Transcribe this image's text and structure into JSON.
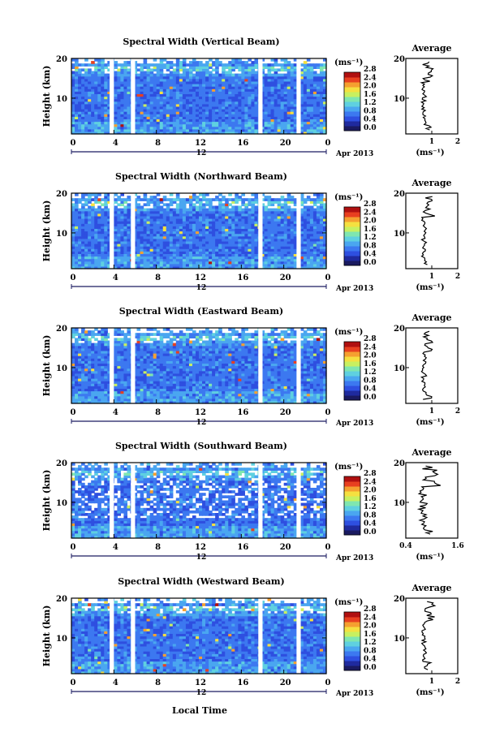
{
  "chart_data": [
    {
      "type": "heatmap",
      "title": "Spectral Width (Vertical Beam)",
      "ylabel": "Height (km)",
      "x_ticks": [
        "0",
        "4",
        "8",
        "12",
        "16",
        "20",
        "0"
      ],
      "y_ticks": [
        "10",
        "20"
      ],
      "date_label": "12",
      "date_suffix": "Apr 2013",
      "xlim": [
        0,
        24
      ],
      "ylim": [
        1,
        20
      ],
      "gaps": [
        [
          3.6,
          4.0
        ],
        [
          5.6,
          6.0
        ],
        [
          17.6,
          18.0
        ],
        [
          21.2,
          21.6
        ]
      ],
      "colorbar": {
        "unit": "(ms⁻¹)",
        "ticks": [
          "0.0",
          "0.4",
          "0.8",
          "1.2",
          "1.6",
          "2.0",
          "2.4",
          "2.8"
        ]
      },
      "average": {
        "title": "Average",
        "xlabel": "(ms⁻¹)",
        "xticks": [
          "1",
          "2"
        ],
        "xlim": [
          0,
          2
        ],
        "yticks": [
          "10",
          "20"
        ]
      }
    },
    {
      "type": "heatmap",
      "title": "Spectral Width (Northward Beam)",
      "ylabel": "Height (km)",
      "x_ticks": [
        "0",
        "4",
        "8",
        "12",
        "16",
        "20",
        "0"
      ],
      "y_ticks": [
        "10",
        "20"
      ],
      "date_label": "12",
      "date_suffix": "Apr 2013",
      "xlim": [
        0,
        24
      ],
      "ylim": [
        1,
        20
      ],
      "gaps": [
        [
          3.6,
          4.0
        ],
        [
          5.6,
          6.0
        ],
        [
          17.6,
          18.0
        ],
        [
          21.2,
          21.6
        ]
      ],
      "colorbar": {
        "unit": "(ms⁻¹)",
        "ticks": [
          "0.0",
          "0.4",
          "0.8",
          "1.2",
          "1.6",
          "2.0",
          "2.4",
          "2.8"
        ]
      },
      "average": {
        "title": "Average",
        "xlabel": "(ms⁻¹)",
        "xticks": [
          "1",
          "2"
        ],
        "xlim": [
          0,
          2
        ],
        "yticks": [
          "10",
          "20"
        ]
      }
    },
    {
      "type": "heatmap",
      "title": "Spectral Width (Eastward Beam)",
      "ylabel": "Height (km)",
      "x_ticks": [
        "0",
        "4",
        "8",
        "12",
        "16",
        "20",
        "0"
      ],
      "y_ticks": [
        "10",
        "20"
      ],
      "date_label": "12",
      "date_suffix": "Apr 2013",
      "xlim": [
        0,
        24
      ],
      "ylim": [
        1,
        20
      ],
      "gaps": [
        [
          3.6,
          4.0
        ],
        [
          5.6,
          6.0
        ],
        [
          17.6,
          18.0
        ],
        [
          21.2,
          21.6
        ]
      ],
      "colorbar": {
        "unit": "(ms⁻¹)",
        "ticks": [
          "0.0",
          "0.4",
          "0.8",
          "1.2",
          "1.6",
          "2.0",
          "2.4",
          "2.8"
        ]
      },
      "average": {
        "title": "Average",
        "xlabel": "(ms⁻¹)",
        "xticks": [
          "1",
          "2"
        ],
        "xlim": [
          0,
          2
        ],
        "yticks": [
          "10",
          "20"
        ]
      }
    },
    {
      "type": "heatmap",
      "title": "Spectral Width (Southward Beam)",
      "ylabel": "Height (km)",
      "x_ticks": [
        "0",
        "4",
        "8",
        "12",
        "16",
        "20",
        "0"
      ],
      "y_ticks": [
        "10",
        "20"
      ],
      "date_label": "12",
      "date_suffix": "Apr 2013",
      "xlim": [
        0,
        24
      ],
      "ylim": [
        1,
        20
      ],
      "gaps": [
        [
          3.6,
          4.0
        ],
        [
          5.6,
          6.0
        ],
        [
          17.6,
          18.0
        ],
        [
          21.2,
          21.6
        ]
      ],
      "colorbar": {
        "unit": "(ms⁻¹)",
        "ticks": [
          "0.0",
          "0.4",
          "0.8",
          "1.2",
          "1.6",
          "2.0",
          "2.4",
          "2.8"
        ]
      },
      "average": {
        "title": "Average",
        "xlabel": "(ms⁻¹)",
        "xticks": [
          "0.4",
          "1.6"
        ],
        "xlim": [
          0.4,
          1.6
        ],
        "yticks": [
          "10",
          "20"
        ]
      }
    },
    {
      "type": "heatmap",
      "title": "Spectral Width (Westward Beam)",
      "ylabel": "Height (km)",
      "x_ticks": [
        "0",
        "4",
        "8",
        "12",
        "16",
        "20",
        "0"
      ],
      "y_ticks": [
        "10",
        "20"
      ],
      "date_label": "12",
      "date_suffix": "Apr 2013",
      "xlim": [
        0,
        24
      ],
      "ylim": [
        1,
        20
      ],
      "gaps": [
        [
          3.6,
          4.0
        ],
        [
          5.6,
          6.0
        ],
        [
          17.6,
          18.0
        ],
        [
          21.2,
          21.6
        ]
      ],
      "colorbar": {
        "unit": "(ms⁻¹)",
        "ticks": [
          "0.0",
          "0.4",
          "0.8",
          "1.2",
          "1.6",
          "2.0",
          "2.4",
          "2.8"
        ]
      },
      "average": {
        "title": "Average",
        "xlabel": "(ms⁻¹)",
        "xticks": [
          "1",
          "2"
        ],
        "xlim": [
          0,
          2
        ],
        "yticks": [
          "10",
          "20"
        ]
      }
    }
  ],
  "xlabel": "Local Time",
  "colors": {
    "scale": [
      "#1a1a60",
      "#1f2a9e",
      "#2e4fe0",
      "#3c78f0",
      "#4aa6f0",
      "#5fd0e0",
      "#7fe6b0",
      "#c8f060",
      "#f5e040",
      "#f5a030",
      "#e84020",
      "#b01010"
    ],
    "axis": "#000000",
    "gap": "#ffffff"
  }
}
